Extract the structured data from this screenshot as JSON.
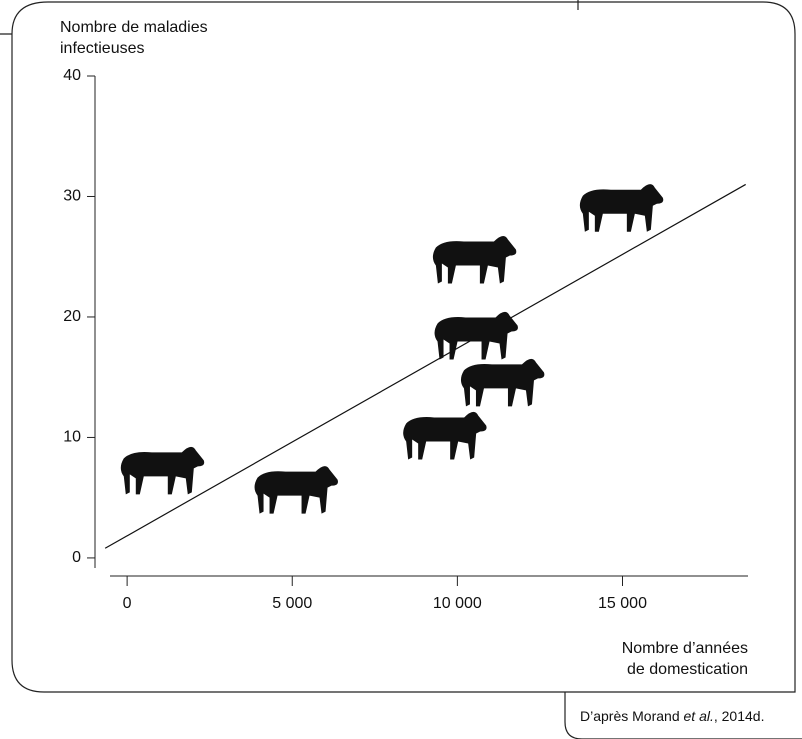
{
  "chart_data": {
    "type": "scatter",
    "y_label": [
      "Nombre de maladies",
      "infectieuses"
    ],
    "x_label": [
      "Nombre d’années",
      "de domestication"
    ],
    "x": [
      1050,
      5100,
      9600,
      11350,
      10550,
      10500,
      14950
    ],
    "values": [
      7.1,
      5.5,
      10,
      14.4,
      18.3,
      24.6,
      28.9
    ],
    "color": "#111111",
    "trend_line": {
      "x": [
        -665,
        18730
      ],
      "y": [
        0.8,
        31
      ]
    },
    "xlim": [
      -700,
      18800
    ],
    "ylim": [
      -1.5,
      40
    ],
    "xticks": [
      0,
      {
        "value": 5000,
        "label": "5 000"
      },
      {
        "value": 10000,
        "label": "10 000"
      },
      {
        "value": 15000,
        "label": "15 000"
      }
    ],
    "yticks": [
      0,
      10,
      20,
      30,
      40
    ],
    "source": {
      "before": "D’après Morand ",
      "italic": "et al.",
      "after": ", 2014d."
    }
  }
}
